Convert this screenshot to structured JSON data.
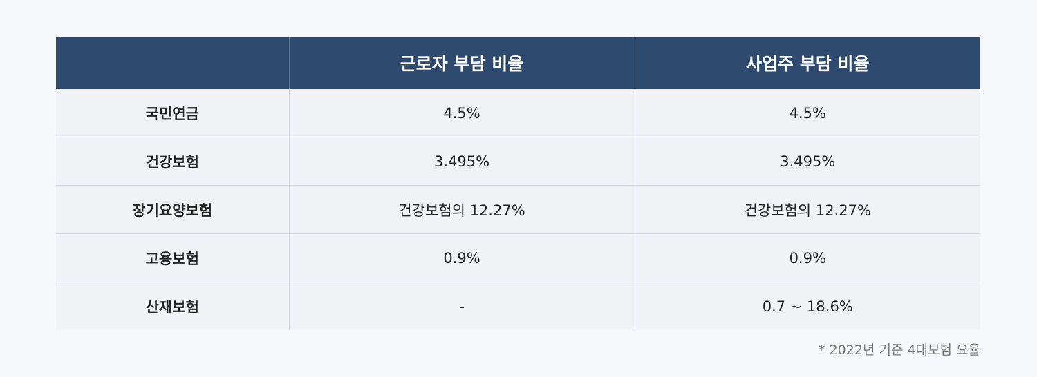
{
  "table": {
    "headers": [
      "",
      "근로자 부담 비율",
      "사업주 부담 비율"
    ],
    "rows": [
      [
        "국민연금",
        "4.5%",
        "4.5%"
      ],
      [
        "건강보험",
        "3.495%",
        "3.495%"
      ],
      [
        "장기요양보험",
        "건강보험의 12.27%",
        "건강보험의 12.27%"
      ],
      [
        "고용보험",
        "0.9%",
        "0.9%"
      ],
      [
        "산재보험",
        "-",
        "0.7 ~ 18.6%"
      ]
    ]
  },
  "footnote": "* 2022년 기준 4대보험 요율",
  "colors": {
    "header_bg": "#2e4a6e",
    "row_bg": "#f0f2f6",
    "page_bg": "#f7f8fc"
  }
}
